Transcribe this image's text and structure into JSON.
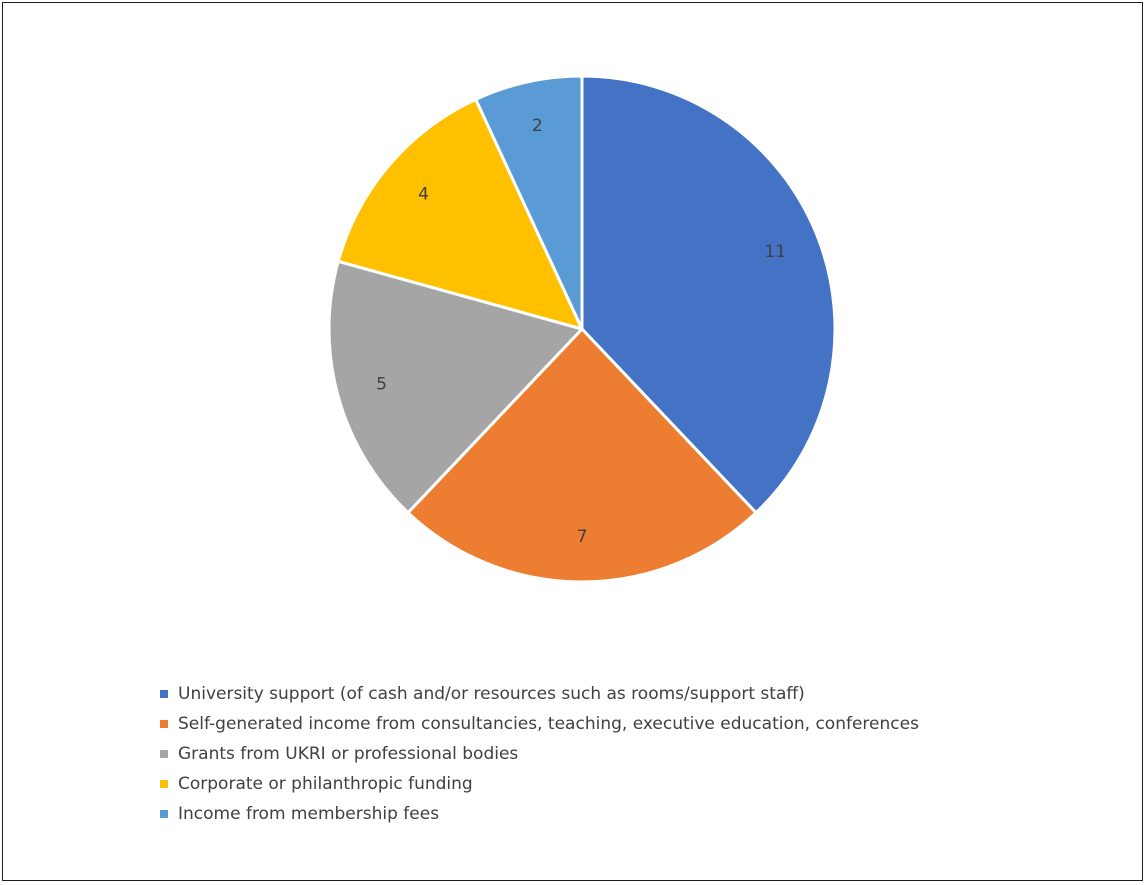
{
  "chart_data": {
    "type": "pie",
    "title": "",
    "slices": [
      {
        "label": "University support (of cash and/or resources such as rooms/support staff)",
        "value": 11,
        "color": "#4472C4"
      },
      {
        "label": "Self-generated income from consultancies, teaching, executive education, conferences",
        "value": 7,
        "color": "#ED7D31"
      },
      {
        "label": "Grants from UKRI or professional bodies",
        "value": 5,
        "color": "#A5A5A5"
      },
      {
        "label": "Corporate or philanthropic funding",
        "value": 4,
        "color": "#FFC000"
      },
      {
        "label": "Income from membership fees",
        "value": 2,
        "color": "#5B9BD5"
      }
    ],
    "data_labels": [
      "11",
      "7",
      "5",
      "4",
      "2"
    ],
    "legend_position": "bottom",
    "start_angle": "12 o'clock",
    "direction": "clockwise"
  }
}
